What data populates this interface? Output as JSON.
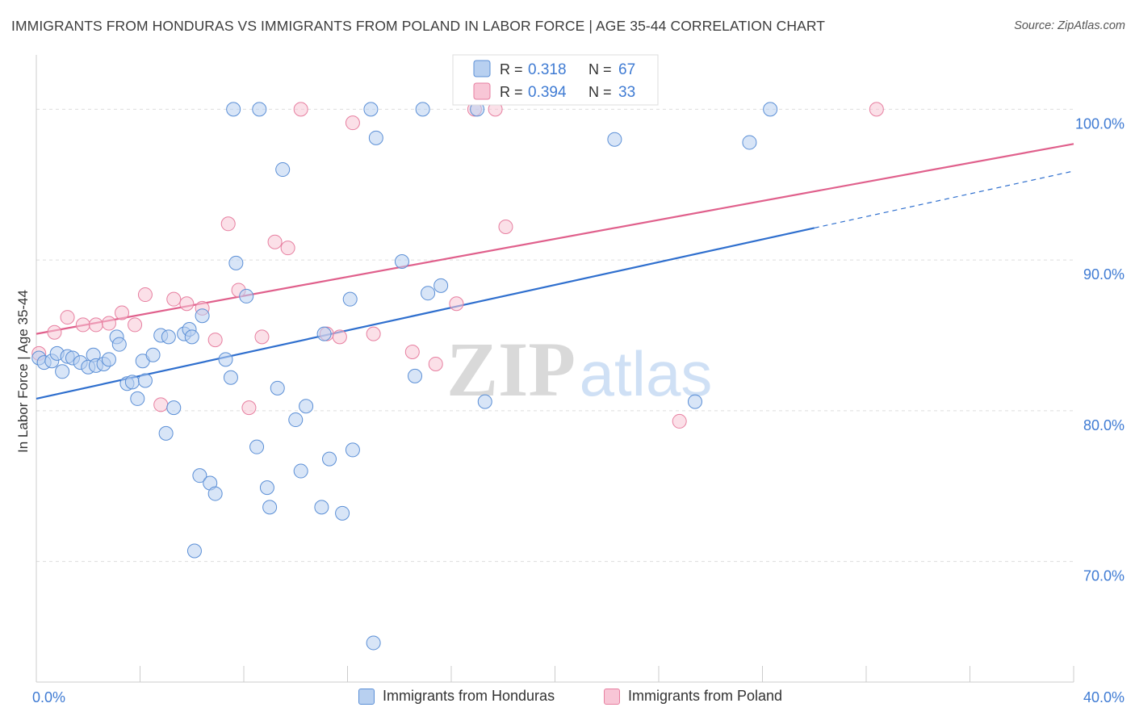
{
  "source": "Source: ZipAtlas.com",
  "colors": {
    "honduras": "#5b8fd6",
    "honduras_fill": "#b8d0f0",
    "poland": "#e77fa0",
    "poland_fill": "#f8c6d6",
    "value_text": "#3f7bd3",
    "grid": "#dddddd"
  },
  "chart_data": {
    "type": "scatter",
    "title": "IMMIGRANTS FROM HONDURAS VS IMMIGRANTS FROM POLAND IN LABOR FORCE | AGE 35-44 CORRELATION CHART",
    "xlabel": "",
    "ylabel": "In Labor Force | Age 35-44",
    "xlim": [
      0,
      40
    ],
    "ylim": [
      62,
      103.5
    ],
    "x_tick_labels": [
      "0.0%",
      "40.0%"
    ],
    "y_ticks": [
      70,
      80,
      90,
      100
    ],
    "y_tick_labels": [
      "70.0%",
      "80.0%",
      "90.0%",
      "100.0%"
    ],
    "watermark": {
      "bold": "ZIP",
      "light": "atlas"
    },
    "legend_stats": [
      {
        "r_label": "R =",
        "r_value": "0.318",
        "n_label": "N =",
        "n_value": "67"
      },
      {
        "r_label": "R =",
        "r_value": "0.394",
        "n_label": "N =",
        "n_value": "33"
      }
    ],
    "series": [
      {
        "name": "Immigrants from Honduras",
        "color": "#5b8fd6",
        "trend": {
          "x0": 0,
          "y0": 80.8,
          "x_solid_end": 30,
          "x_dash_end": 40,
          "slope": 0.3775
        },
        "points": [
          [
            0.1,
            83.5
          ],
          [
            0.3,
            83.2
          ],
          [
            0.6,
            83.3
          ],
          [
            0.8,
            83.8
          ],
          [
            1.0,
            82.6
          ],
          [
            1.2,
            83.6
          ],
          [
            1.4,
            83.5
          ],
          [
            1.7,
            83.2
          ],
          [
            2.0,
            82.9
          ],
          [
            2.2,
            83.7
          ],
          [
            2.3,
            83.0
          ],
          [
            2.6,
            83.1
          ],
          [
            2.8,
            83.4
          ],
          [
            3.1,
            84.9
          ],
          [
            3.2,
            84.4
          ],
          [
            3.5,
            81.8
          ],
          [
            3.7,
            81.9
          ],
          [
            3.9,
            80.8
          ],
          [
            4.1,
            83.3
          ],
          [
            4.2,
            82.0
          ],
          [
            4.5,
            83.7
          ],
          [
            4.8,
            85.0
          ],
          [
            5.0,
            78.5
          ],
          [
            5.1,
            84.9
          ],
          [
            5.3,
            80.2
          ],
          [
            5.7,
            85.1
          ],
          [
            5.9,
            85.4
          ],
          [
            6.0,
            84.9
          ],
          [
            6.3,
            75.7
          ],
          [
            6.4,
            86.3
          ],
          [
            6.7,
            75.2
          ],
          [
            6.9,
            74.5
          ],
          [
            7.3,
            83.4
          ],
          [
            7.5,
            82.2
          ],
          [
            7.7,
            89.8
          ],
          [
            8.1,
            87.6
          ],
          [
            8.5,
            77.6
          ],
          [
            8.9,
            74.9
          ],
          [
            9.0,
            73.6
          ],
          [
            9.3,
            81.5
          ],
          [
            9.5,
            96.0
          ],
          [
            10.0,
            79.4
          ],
          [
            10.2,
            76.0
          ],
          [
            10.4,
            80.3
          ],
          [
            11.0,
            73.6
          ],
          [
            11.1,
            85.1
          ],
          [
            11.3,
            76.8
          ],
          [
            11.8,
            73.2
          ],
          [
            12.1,
            87.4
          ],
          [
            12.2,
            77.4
          ],
          [
            6.1,
            70.7
          ],
          [
            13.0,
            64.6
          ],
          [
            13.1,
            98.1
          ],
          [
            14.1,
            89.9
          ],
          [
            14.6,
            82.3
          ],
          [
            15.1,
            87.8
          ],
          [
            15.6,
            88.3
          ],
          [
            17.3,
            80.6
          ],
          [
            22.3,
            98.0
          ],
          [
            25.4,
            80.6
          ],
          [
            27.5,
            97.8
          ],
          [
            28.3,
            100.0
          ],
          [
            7.6,
            100.0
          ],
          [
            8.6,
            100.0
          ],
          [
            12.9,
            100.0
          ],
          [
            14.9,
            100.0
          ],
          [
            17.0,
            100.0
          ]
        ]
      },
      {
        "name": "Immigrants from Poland",
        "color": "#e77fa0",
        "trend": {
          "x0": 0,
          "y0": 85.1,
          "x_solid_end": 40,
          "slope": 0.315
        },
        "points": [
          [
            0.1,
            83.8
          ],
          [
            0.7,
            85.2
          ],
          [
            1.2,
            86.2
          ],
          [
            1.8,
            85.7
          ],
          [
            2.3,
            85.7
          ],
          [
            2.8,
            85.8
          ],
          [
            3.3,
            86.5
          ],
          [
            3.8,
            85.7
          ],
          [
            4.2,
            87.7
          ],
          [
            4.8,
            80.4
          ],
          [
            5.3,
            87.4
          ],
          [
            5.8,
            87.1
          ],
          [
            6.4,
            86.8
          ],
          [
            6.9,
            84.7
          ],
          [
            7.4,
            92.4
          ],
          [
            7.8,
            88.0
          ],
          [
            8.2,
            80.2
          ],
          [
            8.7,
            84.9
          ],
          [
            9.2,
            91.2
          ],
          [
            9.7,
            90.8
          ],
          [
            10.2,
            100.0
          ],
          [
            11.2,
            85.1
          ],
          [
            11.7,
            84.9
          ],
          [
            12.2,
            99.1
          ],
          [
            13.0,
            85.1
          ],
          [
            14.5,
            83.9
          ],
          [
            15.4,
            83.1
          ],
          [
            16.2,
            87.1
          ],
          [
            16.9,
            100.0
          ],
          [
            17.7,
            100.0
          ],
          [
            18.1,
            92.2
          ],
          [
            24.8,
            79.3
          ],
          [
            32.4,
            100.0
          ]
        ]
      }
    ]
  }
}
